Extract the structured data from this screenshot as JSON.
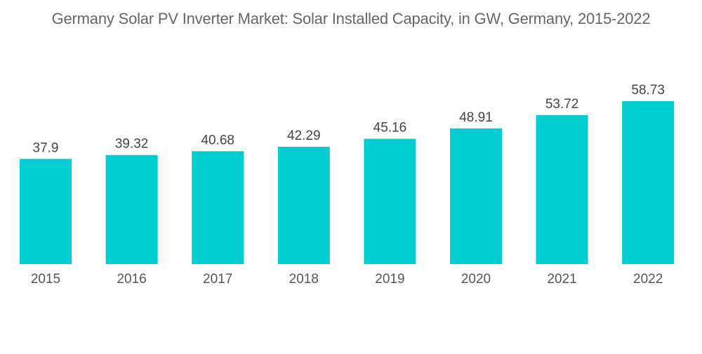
{
  "chart_data": {
    "type": "bar",
    "title": "Germany Solar PV Inverter Market: Solar Installed Capacity, in GW, Germany, 2015-2022",
    "xlabel": "",
    "ylabel": "",
    "categories": [
      "2015",
      "2016",
      "2017",
      "2018",
      "2019",
      "2020",
      "2021",
      "2022"
    ],
    "values": [
      37.9,
      39.32,
      40.68,
      42.29,
      45.16,
      48.91,
      53.72,
      58.73
    ],
    "value_labels": [
      "37.9",
      "39.32",
      "40.68",
      "42.29",
      "45.16",
      "48.91",
      "53.72",
      "58.73"
    ],
    "ylim": [
      0,
      58.73
    ],
    "grid": false,
    "legend": "none",
    "bar_color": "#00CED1"
  }
}
